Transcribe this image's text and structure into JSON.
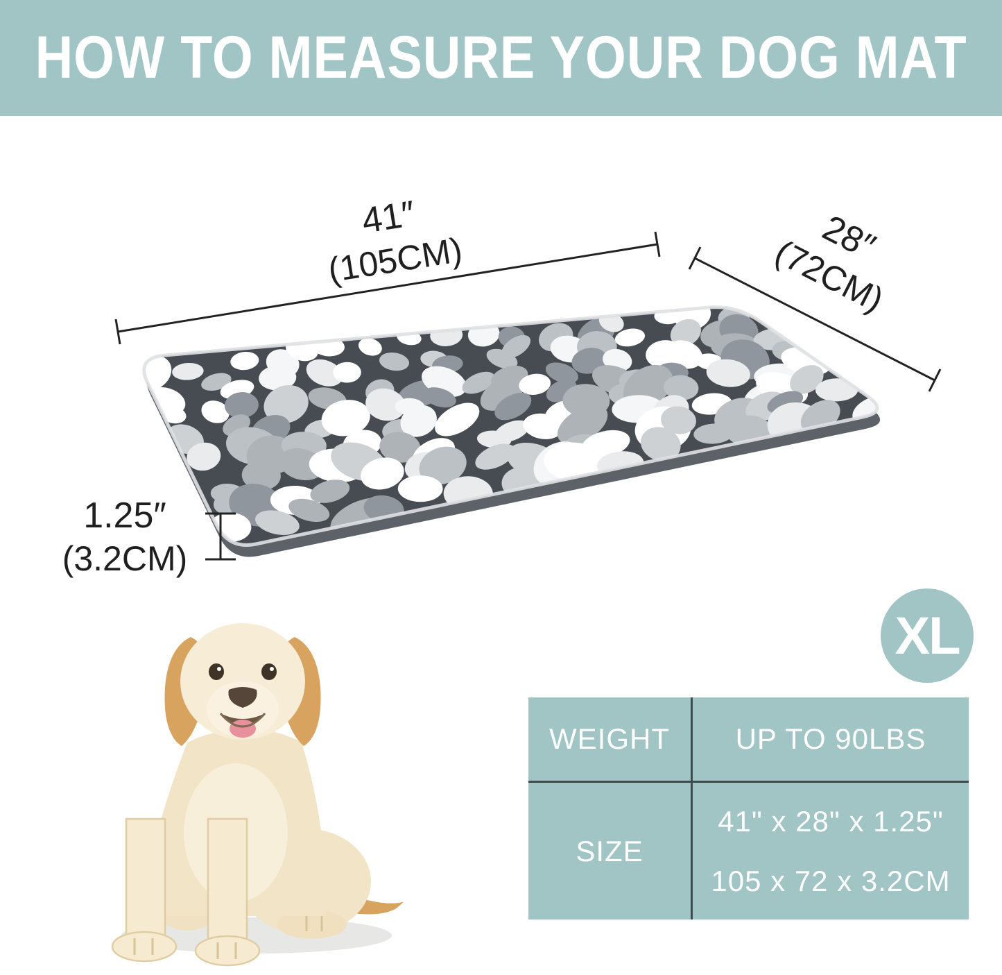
{
  "header": {
    "title": "HOW TO MEASURE YOUR DOG MAT"
  },
  "diagram": {
    "length": {
      "inches": "41″",
      "metric": "(105CM)"
    },
    "width": {
      "inches": "28″",
      "metric": "(72CM)"
    },
    "thickness": {
      "inches": "1.25″",
      "metric": "(3.2CM)"
    }
  },
  "size_badge": {
    "label": "XL"
  },
  "spec_table": {
    "weight_label": "WEIGHT",
    "weight_value": "UP TO 90LBS",
    "size_label": "SIZE",
    "size_value_inches": "41\" x 28\" x 1.25\"",
    "size_value_metric": "105 x 72 x 3.2CM"
  },
  "colors": {
    "accent_teal": "#a1c4c5",
    "table_divider": "#3e4a4c",
    "dimension_text": "#1f1f1f",
    "badge_text": "#ffffff"
  },
  "images": {
    "mat_alt": "grey and white pebble-pattern fleece dog mat shown in perspective",
    "dog_alt": "yellow labrador dog sitting"
  }
}
